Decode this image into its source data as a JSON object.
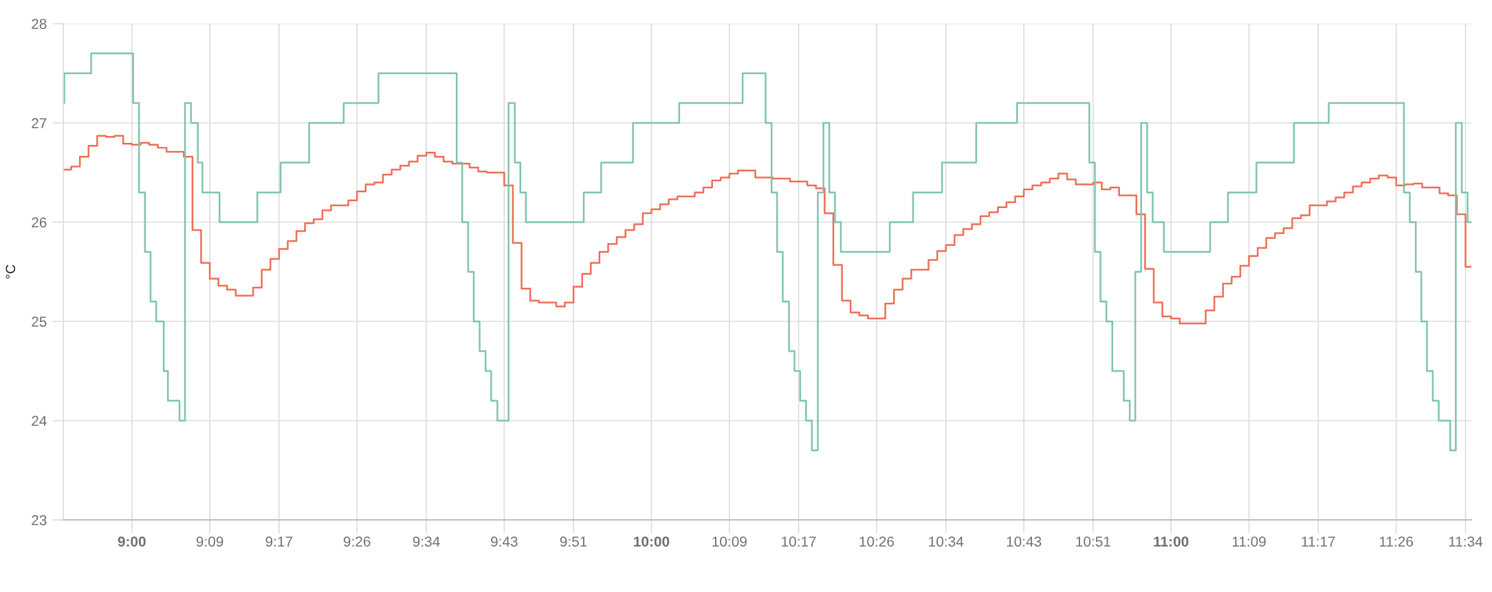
{
  "chart_data": {
    "type": "step",
    "ylabel": "°C",
    "xlim": [
      8.868,
      11.578
    ],
    "ylim": [
      23,
      28
    ],
    "xticks": [
      {
        "value": 9.0,
        "label": "9:00"
      },
      {
        "value": 9.15,
        "label": "9:09"
      },
      {
        "value": 9.2833,
        "label": "9:17"
      },
      {
        "value": 9.4333,
        "label": "9:26"
      },
      {
        "value": 9.5667,
        "label": "9:34"
      },
      {
        "value": 9.7167,
        "label": "9:43"
      },
      {
        "value": 9.85,
        "label": "9:51"
      },
      {
        "value": 10.0,
        "label": "10:00"
      },
      {
        "value": 10.15,
        "label": "10:09"
      },
      {
        "value": 10.2833,
        "label": "10:17"
      },
      {
        "value": 10.4333,
        "label": "10:26"
      },
      {
        "value": 10.5667,
        "label": "10:34"
      },
      {
        "value": 10.7167,
        "label": "10:43"
      },
      {
        "value": 10.85,
        "label": "10:51"
      },
      {
        "value": 11.0,
        "label": "11:00"
      },
      {
        "value": 11.15,
        "label": "11:09"
      },
      {
        "value": 11.2833,
        "label": "11:17"
      },
      {
        "value": 11.4333,
        "label": "11:26"
      },
      {
        "value": 11.5667,
        "label": "11:34"
      }
    ],
    "yticks": [
      23,
      24,
      25,
      26,
      27,
      28
    ],
    "grid": true,
    "series": [
      {
        "color": "#ee6e55",
        "x": [
          8.868,
          8.8833,
          8.9,
          8.9167,
          8.9333,
          8.95,
          8.9667,
          8.9833,
          9.0,
          9.0167,
          9.0333,
          9.05,
          9.0667,
          9.1,
          9.1167,
          9.1333,
          9.15,
          9.1667,
          9.1833,
          9.2,
          9.2333,
          9.25,
          9.2667,
          9.2833,
          9.3,
          9.3167,
          9.3333,
          9.35,
          9.3667,
          9.3833,
          9.4167,
          9.4333,
          9.45,
          9.4667,
          9.4833,
          9.5,
          9.5167,
          9.5333,
          9.55,
          9.5667,
          9.5833,
          9.6,
          9.6167,
          9.65,
          9.6667,
          9.6833,
          9.7167,
          9.7333,
          9.75,
          9.7667,
          9.7833,
          9.8167,
          9.8333,
          9.85,
          9.8667,
          9.8833,
          9.9,
          9.9167,
          9.9333,
          9.95,
          9.9667,
          9.9833,
          10.0,
          10.0167,
          10.0333,
          10.05,
          10.0833,
          10.1,
          10.1167,
          10.1333,
          10.15,
          10.1667,
          10.2,
          10.2333,
          10.2667,
          10.3,
          10.3167,
          10.3333,
          10.35,
          10.3667,
          10.3833,
          10.4,
          10.4167,
          10.45,
          10.4667,
          10.4833,
          10.5,
          10.5333,
          10.55,
          10.5667,
          10.5833,
          10.6,
          10.6167,
          10.6333,
          10.65,
          10.6667,
          10.6833,
          10.7,
          10.7167,
          10.7333,
          10.75,
          10.7667,
          10.7833,
          10.8,
          10.8167,
          10.85,
          10.8667,
          10.8833,
          10.9,
          10.9333,
          10.95,
          10.9667,
          10.9833,
          11.0,
          11.0167,
          11.0667,
          11.0833,
          11.1,
          11.1167,
          11.1333,
          11.15,
          11.1667,
          11.1833,
          11.2,
          11.2167,
          11.2333,
          11.25,
          11.2667,
          11.3,
          11.3167,
          11.3333,
          11.35,
          11.3667,
          11.3833,
          11.4,
          11.4167,
          11.4333,
          11.45,
          11.4667,
          11.4833,
          11.5167,
          11.5333,
          11.55,
          11.5667,
          11.578
        ],
        "values": [
          26.53,
          26.56,
          26.66,
          26.77,
          26.87,
          26.86,
          26.87,
          26.79,
          26.78,
          26.8,
          26.78,
          26.75,
          26.71,
          26.66,
          25.92,
          25.59,
          25.43,
          25.36,
          25.32,
          25.26,
          25.34,
          25.52,
          25.63,
          25.73,
          25.81,
          25.91,
          25.99,
          26.03,
          26.12,
          26.17,
          26.22,
          26.31,
          26.38,
          26.4,
          26.48,
          26.53,
          26.57,
          26.61,
          26.67,
          26.7,
          26.66,
          26.61,
          26.59,
          26.55,
          26.51,
          26.5,
          26.37,
          25.79,
          25.33,
          25.21,
          25.19,
          25.15,
          25.19,
          25.35,
          25.48,
          25.59,
          25.7,
          25.78,
          25.85,
          25.92,
          25.98,
          26.09,
          26.13,
          26.18,
          26.23,
          26.26,
          26.3,
          26.35,
          26.42,
          26.45,
          26.49,
          26.52,
          26.45,
          26.44,
          26.41,
          26.37,
          26.34,
          26.09,
          25.57,
          25.21,
          25.09,
          25.06,
          25.03,
          25.18,
          25.32,
          25.43,
          25.52,
          25.62,
          25.71,
          25.77,
          25.87,
          25.93,
          25.98,
          26.06,
          26.1,
          26.15,
          26.2,
          26.26,
          26.33,
          26.37,
          26.4,
          26.44,
          26.49,
          26.43,
          26.38,
          26.4,
          26.33,
          26.35,
          26.27,
          26.08,
          25.53,
          25.19,
          25.05,
          25.03,
          24.98,
          25.11,
          25.25,
          25.38,
          25.45,
          25.56,
          25.66,
          25.74,
          25.84,
          25.89,
          25.94,
          26.04,
          26.07,
          26.17,
          26.21,
          26.25,
          26.3,
          26.36,
          26.4,
          26.44,
          26.47,
          26.45,
          26.37,
          26.38,
          26.39,
          26.35,
          26.29,
          26.27,
          26.08,
          25.55,
          25.55
        ]
      },
      {
        "color": "#7ec4ad",
        "x": [
          8.868,
          8.87,
          8.9217,
          9.0025,
          9.0138,
          9.0253,
          9.036,
          9.0468,
          9.0613,
          9.0695,
          9.0917,
          9.1023,
          9.1138,
          9.127,
          9.1358,
          9.1688,
          9.2415,
          9.2863,
          9.3413,
          9.4077,
          9.4747,
          9.6252,
          9.6358,
          9.6472,
          9.658,
          9.6693,
          9.6807,
          9.6915,
          9.7035,
          9.725,
          9.737,
          9.7477,
          9.7583,
          9.8697,
          9.9032,
          9.9645,
          10.0535,
          10.1755,
          10.2198,
          10.2312,
          10.2418,
          10.2527,
          10.2647,
          10.2753,
          10.2862,
          10.2975,
          10.3088,
          10.3202,
          10.331,
          10.3423,
          10.3532,
          10.3645,
          10.4587,
          10.5035,
          10.5592,
          10.625,
          10.7037,
          10.8427,
          10.8535,
          10.8642,
          10.8755,
          10.887,
          10.909,
          10.9205,
          10.9312,
          10.9425,
          10.954,
          10.9647,
          10.9862,
          11.0753,
          11.1095,
          11.1643,
          11.2365,
          11.3035,
          11.4482,
          11.4595,
          11.471,
          11.4817,
          11.4925,
          11.5038,
          11.5152,
          11.5373,
          11.548,
          11.5595,
          11.5708,
          11.578
        ],
        "values": [
          27.2,
          27.5,
          27.7,
          27.2,
          26.3,
          25.7,
          25.2,
          25.0,
          24.5,
          24.2,
          24.0,
          27.2,
          27.0,
          26.6,
          26.3,
          26.0,
          26.3,
          26.6,
          27.0,
          27.2,
          27.5,
          26.6,
          26.0,
          25.5,
          25.0,
          24.7,
          24.5,
          24.2,
          24.0,
          27.2,
          26.6,
          26.3,
          26.0,
          26.3,
          26.6,
          27.0,
          27.2,
          27.5,
          27.0,
          26.3,
          25.7,
          25.2,
          24.7,
          24.5,
          24.2,
          24.0,
          23.7,
          26.3,
          27.0,
          26.3,
          26.0,
          25.7,
          26.0,
          26.3,
          26.6,
          27.0,
          27.2,
          26.6,
          25.7,
          25.2,
          25.0,
          24.5,
          24.2,
          24.0,
          25.5,
          27.0,
          26.3,
          26.0,
          25.7,
          26.0,
          26.3,
          26.6,
          27.0,
          27.2,
          26.3,
          26.0,
          25.5,
          25.0,
          24.5,
          24.2,
          24.0,
          23.7,
          27.0,
          26.3,
          26.0,
          26.0
        ]
      }
    ]
  }
}
